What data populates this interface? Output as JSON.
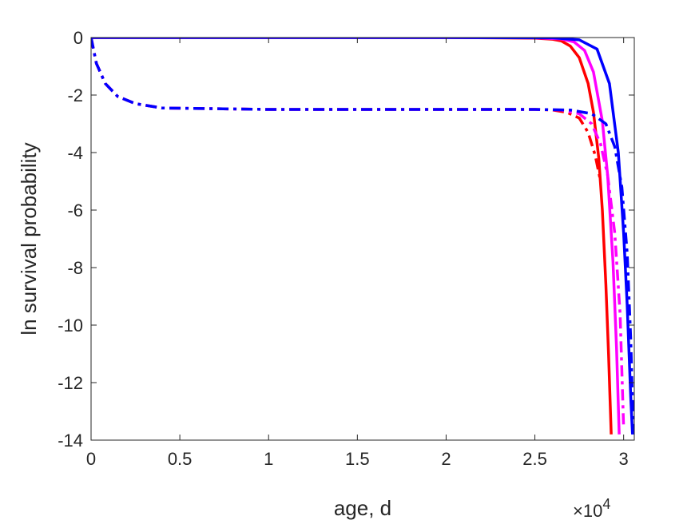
{
  "chart_data": {
    "type": "line",
    "title": "",
    "xlabel": "age, d",
    "ylabel": "ln survival probability",
    "x_exponent_label": "×10",
    "x_exponent_power": "4",
    "xlim": [
      0,
      30600
    ],
    "ylim": [
      -14,
      0
    ],
    "xticks": [
      0,
      5000,
      10000,
      15000,
      20000,
      25000,
      30000
    ],
    "xtick_labels": [
      "0",
      "0.5",
      "1",
      "1.5",
      "2",
      "2.5",
      "3"
    ],
    "yticks": [
      0,
      -2,
      -4,
      -6,
      -8,
      -10,
      -12,
      -14
    ],
    "ytick_labels": [
      "0",
      "-2",
      "-4",
      "-6",
      "-8",
      "-10",
      "-12",
      "-14"
    ],
    "grid": false,
    "series": [
      {
        "color": "#ff0000",
        "style": "solid",
        "x": [
          0,
          10000,
          20000,
          25000,
          26000,
          26500,
          27000,
          27500,
          28000,
          28300,
          28600,
          28800,
          29000,
          29150,
          29300
        ],
        "y": [
          0,
          0,
          0,
          -0.02,
          -0.06,
          -0.12,
          -0.3,
          -0.7,
          -1.6,
          -2.6,
          -4.2,
          -6.0,
          -8.6,
          -11.0,
          -13.8
        ]
      },
      {
        "color": "#ff00ff",
        "style": "solid",
        "x": [
          0,
          10000,
          20000,
          25000,
          26500,
          27200,
          27800,
          28300,
          28800,
          29100,
          29400,
          29600,
          29750
        ],
        "y": [
          0,
          0,
          0,
          -0.01,
          -0.05,
          -0.15,
          -0.45,
          -1.2,
          -2.9,
          -4.8,
          -7.8,
          -10.8,
          -13.8
        ]
      },
      {
        "color": "#0000ff",
        "style": "solid",
        "x": [
          0,
          10000,
          20000,
          26000,
          27500,
          28500,
          29200,
          29700,
          30000,
          30200,
          30400,
          30500
        ],
        "y": [
          0,
          0,
          0,
          -0.01,
          -0.08,
          -0.4,
          -1.6,
          -4.0,
          -6.8,
          -9.3,
          -12.5,
          -13.8
        ]
      },
      {
        "color": "#ff0000",
        "style": "dashdot",
        "x": [
          0,
          300,
          800,
          1500,
          2500,
          4000,
          10000,
          20000,
          25000,
          26000,
          26800,
          27500,
          28000,
          28400,
          28700
        ],
        "y": [
          0,
          -0.9,
          -1.6,
          -2.05,
          -2.3,
          -2.45,
          -2.5,
          -2.5,
          -2.5,
          -2.52,
          -2.6,
          -2.8,
          -3.3,
          -4.1,
          -5.0
        ]
      },
      {
        "color": "#ff00ff",
        "style": "dashdot",
        "x": [
          0,
          300,
          800,
          1500,
          2500,
          4000,
          10000,
          20000,
          25000,
          26500,
          27500,
          28200,
          28700,
          29100,
          29500,
          29800,
          30000
        ],
        "y": [
          0,
          -0.9,
          -1.6,
          -2.05,
          -2.3,
          -2.45,
          -2.5,
          -2.5,
          -2.5,
          -2.52,
          -2.65,
          -3.0,
          -3.7,
          -4.8,
          -6.8,
          -9.6,
          -13.6
        ]
      },
      {
        "color": "#0000ff",
        "style": "dashdot",
        "x": [
          0,
          300,
          800,
          1500,
          2500,
          4000,
          10000,
          20000,
          25000,
          27000,
          28200,
          29000,
          29500,
          29900,
          30200,
          30400,
          30550
        ],
        "y": [
          0,
          -0.9,
          -1.6,
          -2.05,
          -2.3,
          -2.45,
          -2.5,
          -2.5,
          -2.5,
          -2.52,
          -2.65,
          -3.0,
          -3.8,
          -5.2,
          -7.5,
          -10.5,
          -13.8
        ]
      }
    ]
  }
}
